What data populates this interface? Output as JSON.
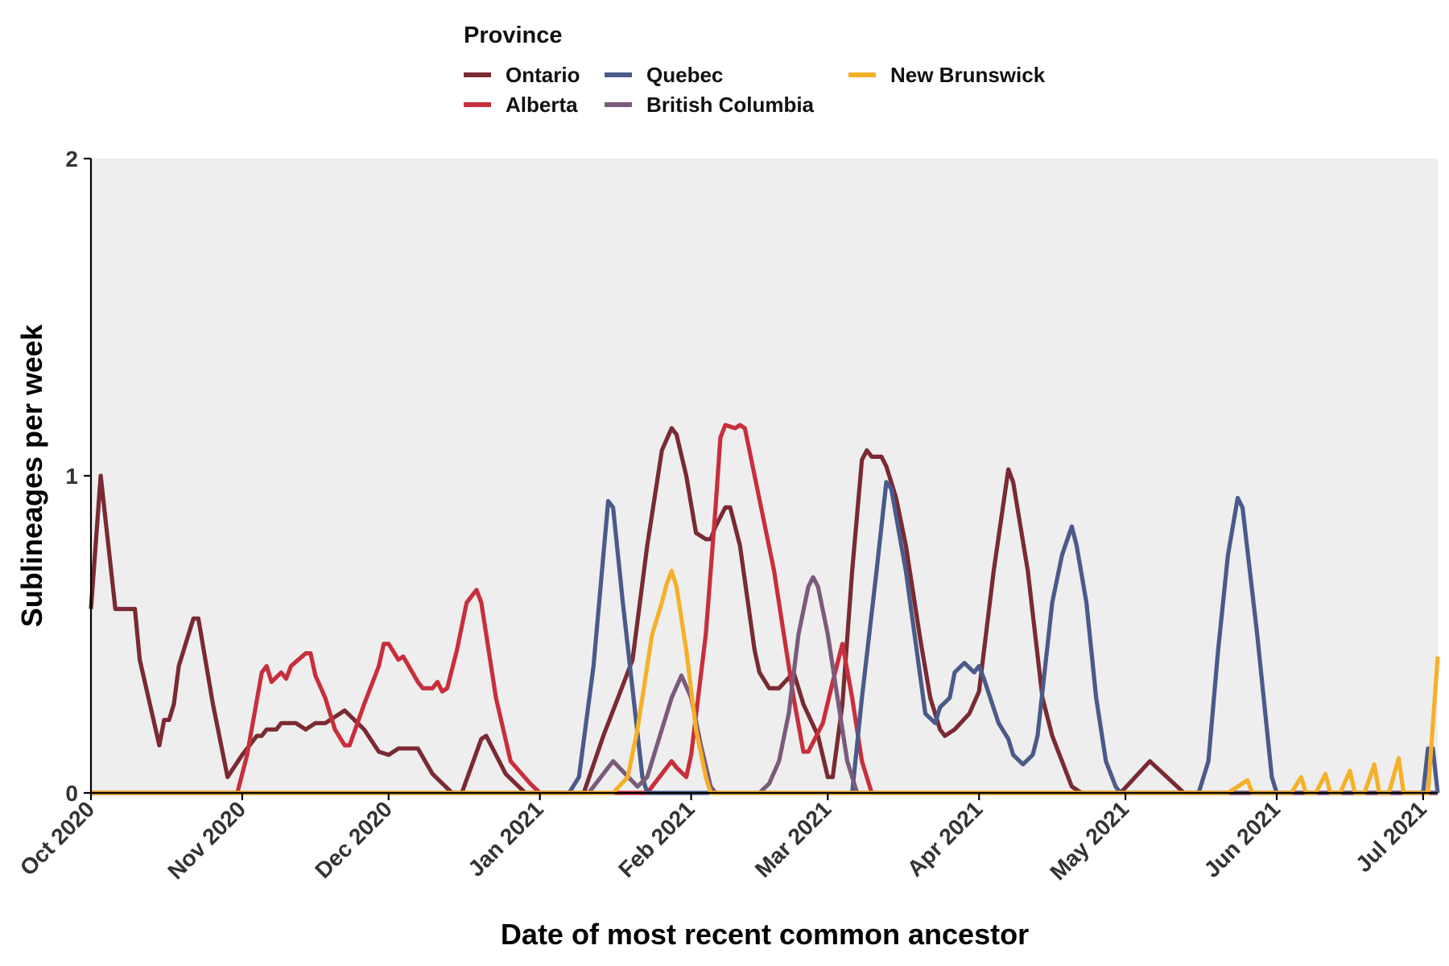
{
  "chart_data": {
    "type": "line",
    "xlabel": "Date of most recent common ancestor",
    "ylabel": "Sublineages per week",
    "x_range": [
      "2020-10-01",
      "2021-07-04"
    ],
    "ylim": [
      0,
      2
    ],
    "y_ticks": [
      0,
      1,
      2
    ],
    "x_ticks": [
      {
        "date": "2020-10-01",
        "label": "Oct 2020"
      },
      {
        "date": "2020-11-01",
        "label": "Nov 2020"
      },
      {
        "date": "2020-12-01",
        "label": "Dec 2020"
      },
      {
        "date": "2021-01-01",
        "label": "Jan 2021"
      },
      {
        "date": "2021-02-01",
        "label": "Feb 2021"
      },
      {
        "date": "2021-03-01",
        "label": "Mar 2021"
      },
      {
        "date": "2021-04-01",
        "label": "Apr 2021"
      },
      {
        "date": "2021-05-01",
        "label": "May 2021"
      },
      {
        "date": "2021-06-01",
        "label": "Jun 2021"
      },
      {
        "date": "2021-07-01",
        "label": "Jul 2021"
      }
    ],
    "grid": false,
    "legend": {
      "title": "Province",
      "position": "top"
    },
    "panel_background": "#eeeeee",
    "series": [
      {
        "name": "Ontario",
        "color": "#7a2a32",
        "points": [
          [
            "2020-10-01",
            0.58
          ],
          [
            "2020-10-03",
            1.0
          ],
          [
            "2020-10-06",
            0.58
          ],
          [
            "2020-10-10",
            0.58
          ],
          [
            "2020-10-11",
            0.42
          ],
          [
            "2020-10-15",
            0.15
          ],
          [
            "2020-10-16",
            0.23
          ],
          [
            "2020-10-17",
            0.23
          ],
          [
            "2020-10-18",
            0.28
          ],
          [
            "2020-10-19",
            0.4
          ],
          [
            "2020-10-22",
            0.55
          ],
          [
            "2020-10-23",
            0.55
          ],
          [
            "2020-10-26",
            0.28
          ],
          [
            "2020-10-29",
            0.05
          ],
          [
            "2020-11-01",
            0.12
          ],
          [
            "2020-11-04",
            0.18
          ],
          [
            "2020-11-05",
            0.18
          ],
          [
            "2020-11-06",
            0.2
          ],
          [
            "2020-11-08",
            0.2
          ],
          [
            "2020-11-09",
            0.22
          ],
          [
            "2020-11-12",
            0.22
          ],
          [
            "2020-11-14",
            0.2
          ],
          [
            "2020-11-16",
            0.22
          ],
          [
            "2020-11-18",
            0.22
          ],
          [
            "2020-11-22",
            0.26
          ],
          [
            "2020-11-26",
            0.2
          ],
          [
            "2020-11-29",
            0.13
          ],
          [
            "2020-12-01",
            0.12
          ],
          [
            "2020-12-03",
            0.14
          ],
          [
            "2020-12-07",
            0.14
          ],
          [
            "2020-12-10",
            0.06
          ],
          [
            "2020-12-14",
            0.0
          ],
          [
            "2020-12-16",
            0.0
          ],
          [
            "2020-12-20",
            0.17
          ],
          [
            "2020-12-21",
            0.18
          ],
          [
            "2020-12-25",
            0.06
          ],
          [
            "2020-12-29",
            0.0
          ],
          [
            "2021-01-10",
            0.0
          ],
          [
            "2021-01-14",
            0.18
          ],
          [
            "2021-01-17",
            0.3
          ],
          [
            "2021-01-20",
            0.42
          ],
          [
            "2021-01-23",
            0.78
          ],
          [
            "2021-01-24",
            0.88
          ],
          [
            "2021-01-26",
            1.08
          ],
          [
            "2021-01-28",
            1.15
          ],
          [
            "2021-01-29",
            1.13
          ],
          [
            "2021-01-31",
            1.0
          ],
          [
            "2021-02-02",
            0.82
          ],
          [
            "2021-02-04",
            0.8
          ],
          [
            "2021-02-05",
            0.8
          ],
          [
            "2021-02-06",
            0.84
          ],
          [
            "2021-02-08",
            0.9
          ],
          [
            "2021-02-09",
            0.9
          ],
          [
            "2021-02-11",
            0.78
          ],
          [
            "2021-02-14",
            0.45
          ],
          [
            "2021-02-15",
            0.38
          ],
          [
            "2021-02-17",
            0.33
          ],
          [
            "2021-02-19",
            0.33
          ],
          [
            "2021-02-22",
            0.38
          ],
          [
            "2021-02-24",
            0.28
          ],
          [
            "2021-02-27",
            0.18
          ],
          [
            "2021-03-01",
            0.05
          ],
          [
            "2021-03-02",
            0.05
          ],
          [
            "2021-03-04",
            0.28
          ],
          [
            "2021-03-06",
            0.7
          ],
          [
            "2021-03-08",
            1.05
          ],
          [
            "2021-03-09",
            1.08
          ],
          [
            "2021-03-10",
            1.06
          ],
          [
            "2021-03-12",
            1.06
          ],
          [
            "2021-03-13",
            1.03
          ],
          [
            "2021-03-15",
            0.93
          ],
          [
            "2021-03-17",
            0.78
          ],
          [
            "2021-03-20",
            0.48
          ],
          [
            "2021-03-22",
            0.3
          ],
          [
            "2021-03-24",
            0.2
          ],
          [
            "2021-03-25",
            0.18
          ],
          [
            "2021-03-27",
            0.2
          ],
          [
            "2021-03-30",
            0.25
          ],
          [
            "2021-04-01",
            0.32
          ],
          [
            "2021-04-04",
            0.7
          ],
          [
            "2021-04-07",
            1.02
          ],
          [
            "2021-04-08",
            0.98
          ],
          [
            "2021-04-11",
            0.7
          ],
          [
            "2021-04-14",
            0.3
          ],
          [
            "2021-04-16",
            0.18
          ],
          [
            "2021-04-20",
            0.02
          ],
          [
            "2021-04-22",
            0.0
          ],
          [
            "2021-04-30",
            0.0
          ],
          [
            "2021-05-06",
            0.1
          ],
          [
            "2021-05-13",
            0.0
          ],
          [
            "2021-07-04",
            0.0
          ]
        ]
      },
      {
        "name": "Alberta",
        "color": "#c72f3b",
        "points": [
          [
            "2020-10-01",
            0.0
          ],
          [
            "2020-10-31",
            0.0
          ],
          [
            "2020-11-02",
            0.12
          ],
          [
            "2020-11-05",
            0.38
          ],
          [
            "2020-11-06",
            0.4
          ],
          [
            "2020-11-07",
            0.35
          ],
          [
            "2020-11-09",
            0.38
          ],
          [
            "2020-11-10",
            0.36
          ],
          [
            "2020-11-11",
            0.4
          ],
          [
            "2020-11-14",
            0.44
          ],
          [
            "2020-11-15",
            0.44
          ],
          [
            "2020-11-16",
            0.37
          ],
          [
            "2020-11-18",
            0.3
          ],
          [
            "2020-11-20",
            0.2
          ],
          [
            "2020-11-22",
            0.15
          ],
          [
            "2020-11-23",
            0.15
          ],
          [
            "2020-11-26",
            0.28
          ],
          [
            "2020-11-29",
            0.4
          ],
          [
            "2020-11-30",
            0.47
          ],
          [
            "2020-12-01",
            0.47
          ],
          [
            "2020-12-03",
            0.42
          ],
          [
            "2020-12-04",
            0.43
          ],
          [
            "2020-12-07",
            0.35
          ],
          [
            "2020-12-08",
            0.33
          ],
          [
            "2020-12-10",
            0.33
          ],
          [
            "2020-12-11",
            0.35
          ],
          [
            "2020-12-12",
            0.32
          ],
          [
            "2020-12-13",
            0.33
          ],
          [
            "2020-12-15",
            0.45
          ],
          [
            "2020-12-17",
            0.6
          ],
          [
            "2020-12-19",
            0.64
          ],
          [
            "2020-12-20",
            0.6
          ],
          [
            "2020-12-23",
            0.3
          ],
          [
            "2020-12-26",
            0.1
          ],
          [
            "2020-12-30",
            0.03
          ],
          [
            "2021-01-01",
            0.0
          ],
          [
            "2021-01-23",
            0.0
          ],
          [
            "2021-01-26",
            0.06
          ],
          [
            "2021-01-28",
            0.1
          ],
          [
            "2021-01-29",
            0.08
          ],
          [
            "2021-01-31",
            0.05
          ],
          [
            "2021-02-01",
            0.12
          ],
          [
            "2021-02-04",
            0.5
          ],
          [
            "2021-02-06",
            0.9
          ],
          [
            "2021-02-07",
            1.12
          ],
          [
            "2021-02-08",
            1.16
          ],
          [
            "2021-02-10",
            1.15
          ],
          [
            "2021-02-11",
            1.16
          ],
          [
            "2021-02-12",
            1.15
          ],
          [
            "2021-02-14",
            1.0
          ],
          [
            "2021-02-16",
            0.85
          ],
          [
            "2021-02-18",
            0.7
          ],
          [
            "2021-02-20",
            0.5
          ],
          [
            "2021-02-22",
            0.3
          ],
          [
            "2021-02-24",
            0.13
          ],
          [
            "2021-02-25",
            0.13
          ],
          [
            "2021-02-28",
            0.22
          ],
          [
            "2021-03-02",
            0.35
          ],
          [
            "2021-03-04",
            0.47
          ],
          [
            "2021-03-06",
            0.3
          ],
          [
            "2021-03-08",
            0.1
          ],
          [
            "2021-03-10",
            0.0
          ],
          [
            "2021-07-04",
            0.0
          ]
        ]
      },
      {
        "name": "Quebec",
        "color": "#4a5a8a",
        "points": [
          [
            "2020-10-01",
            0.0
          ],
          [
            "2021-01-07",
            0.0
          ],
          [
            "2021-01-09",
            0.05
          ],
          [
            "2021-01-12",
            0.4
          ],
          [
            "2021-01-15",
            0.92
          ],
          [
            "2021-01-16",
            0.9
          ],
          [
            "2021-01-18",
            0.6
          ],
          [
            "2021-01-22",
            0.05
          ],
          [
            "2021-01-23",
            0.0
          ],
          [
            "2021-03-06",
            0.0
          ],
          [
            "2021-03-08",
            0.3
          ],
          [
            "2021-03-11",
            0.7
          ],
          [
            "2021-03-13",
            0.98
          ],
          [
            "2021-03-14",
            0.96
          ],
          [
            "2021-03-17",
            0.7
          ],
          [
            "2021-03-21",
            0.25
          ],
          [
            "2021-03-23",
            0.22
          ],
          [
            "2021-03-24",
            0.27
          ],
          [
            "2021-03-26",
            0.3
          ],
          [
            "2021-03-27",
            0.38
          ],
          [
            "2021-03-29",
            0.41
          ],
          [
            "2021-03-31",
            0.38
          ],
          [
            "2021-04-01",
            0.4
          ],
          [
            "2021-04-02",
            0.36
          ],
          [
            "2021-04-05",
            0.22
          ],
          [
            "2021-04-07",
            0.17
          ],
          [
            "2021-04-08",
            0.12
          ],
          [
            "2021-04-10",
            0.09
          ],
          [
            "2021-04-12",
            0.12
          ],
          [
            "2021-04-13",
            0.18
          ],
          [
            "2021-04-16",
            0.6
          ],
          [
            "2021-04-18",
            0.75
          ],
          [
            "2021-04-20",
            0.84
          ],
          [
            "2021-04-21",
            0.78
          ],
          [
            "2021-04-23",
            0.6
          ],
          [
            "2021-04-25",
            0.3
          ],
          [
            "2021-04-27",
            0.1
          ],
          [
            "2021-04-29",
            0.02
          ],
          [
            "2021-04-30",
            0.0
          ],
          [
            "2021-05-16",
            0.0
          ],
          [
            "2021-05-18",
            0.1
          ],
          [
            "2021-05-20",
            0.45
          ],
          [
            "2021-05-22",
            0.75
          ],
          [
            "2021-05-24",
            0.93
          ],
          [
            "2021-05-25",
            0.9
          ],
          [
            "2021-05-28",
            0.5
          ],
          [
            "2021-05-31",
            0.05
          ],
          [
            "2021-06-01",
            0.0
          ],
          [
            "2021-07-01",
            0.0
          ],
          [
            "2021-07-02",
            0.14
          ],
          [
            "2021-07-03",
            0.14
          ],
          [
            "2021-07-04",
            0.0
          ]
        ]
      },
      {
        "name": "British Columbia",
        "color": "#7b5b7b",
        "points": [
          [
            "2020-10-01",
            0.0
          ],
          [
            "2021-01-11",
            0.0
          ],
          [
            "2021-01-16",
            0.1
          ],
          [
            "2021-01-21",
            0.02
          ],
          [
            "2021-01-23",
            0.05
          ],
          [
            "2021-01-25",
            0.15
          ],
          [
            "2021-01-28",
            0.3
          ],
          [
            "2021-01-30",
            0.37
          ],
          [
            "2021-02-01",
            0.3
          ],
          [
            "2021-02-03",
            0.15
          ],
          [
            "2021-02-05",
            0.02
          ],
          [
            "2021-02-06",
            0.0
          ],
          [
            "2021-02-15",
            0.0
          ],
          [
            "2021-02-17",
            0.03
          ],
          [
            "2021-02-19",
            0.1
          ],
          [
            "2021-02-21",
            0.25
          ],
          [
            "2021-02-23",
            0.5
          ],
          [
            "2021-02-25",
            0.65
          ],
          [
            "2021-02-26",
            0.68
          ],
          [
            "2021-02-27",
            0.65
          ],
          [
            "2021-03-01",
            0.5
          ],
          [
            "2021-03-03",
            0.3
          ],
          [
            "2021-03-05",
            0.1
          ],
          [
            "2021-03-07",
            0.0
          ],
          [
            "2021-07-04",
            0.0
          ]
        ]
      },
      {
        "name": "New Brunswick",
        "color": "#f5b02a",
        "points": [
          [
            "2020-10-01",
            0.0
          ],
          [
            "2021-01-16",
            0.0
          ],
          [
            "2021-01-19",
            0.05
          ],
          [
            "2021-01-21",
            0.2
          ],
          [
            "2021-01-24",
            0.5
          ],
          [
            "2021-01-26",
            0.6
          ],
          [
            "2021-01-27",
            0.66
          ],
          [
            "2021-01-28",
            0.7
          ],
          [
            "2021-01-29",
            0.65
          ],
          [
            "2021-01-31",
            0.45
          ],
          [
            "2021-02-02",
            0.2
          ],
          [
            "2021-02-04",
            0.05
          ],
          [
            "2021-02-05",
            0.0
          ],
          [
            "2021-05-22",
            0.0
          ],
          [
            "2021-05-26",
            0.04
          ],
          [
            "2021-05-27",
            0.0
          ],
          [
            "2021-06-04",
            0.0
          ],
          [
            "2021-06-06",
            0.05
          ],
          [
            "2021-06-07",
            0.0
          ],
          [
            "2021-06-09",
            0.0
          ],
          [
            "2021-06-11",
            0.06
          ],
          [
            "2021-06-12",
            0.0
          ],
          [
            "2021-06-14",
            0.0
          ],
          [
            "2021-06-16",
            0.07
          ],
          [
            "2021-06-17",
            0.0
          ],
          [
            "2021-06-19",
            0.0
          ],
          [
            "2021-06-21",
            0.09
          ],
          [
            "2021-06-22",
            0.0
          ],
          [
            "2021-06-24",
            0.0
          ],
          [
            "2021-06-26",
            0.11
          ],
          [
            "2021-06-27",
            0.0
          ],
          [
            "2021-07-02",
            0.0
          ],
          [
            "2021-07-04",
            0.43
          ]
        ]
      }
    ]
  }
}
